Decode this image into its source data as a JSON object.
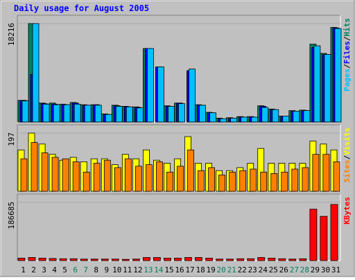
{
  "chart_data": {
    "type": "bar",
    "title": "Daily usage for August 2005",
    "categories": [
      "1",
      "2",
      "3",
      "4",
      "5",
      "6",
      "7",
      "8",
      "9",
      "10",
      "11",
      "12",
      "13",
      "14",
      "15",
      "16",
      "17",
      "18",
      "19",
      "20",
      "21",
      "22",
      "23",
      "24",
      "25",
      "26",
      "27",
      "28",
      "29",
      "30",
      "31"
    ],
    "weekend_days": [
      "6",
      "7",
      "13",
      "14",
      "20",
      "21",
      "27",
      "28"
    ],
    "colors": {
      "hits": "#00805c",
      "files": "#0000ff",
      "pages": "#00c0ff",
      "visits": "#ffff00",
      "sites": "#ff8000",
      "kbytes": "#ff0000",
      "background": "#c0c0c0",
      "panel": "#ffffff",
      "title": "#0000ff",
      "weekend_label": "#00805c",
      "weekday_label": "#000000"
    },
    "panels": [
      {
        "id": "hits-files-pages",
        "max_label": "18216",
        "ymax": 18216,
        "legend": [
          {
            "text": "Pages",
            "color": "#00c0ff"
          },
          {
            "text": "/",
            "color": "#000000"
          },
          {
            "text": "Files",
            "color": "#0000ff"
          },
          {
            "text": "/",
            "color": "#000000"
          },
          {
            "text": "Hits",
            "color": "#00805c"
          }
        ],
        "series": [
          {
            "name": "Hits",
            "color": "#00805c",
            "values": [
              4000,
              18216,
              3500,
              3500,
              3300,
              3600,
              3200,
              3200,
              1500,
              3100,
              2900,
              2800,
              13600,
              0,
              3000,
              3500,
              0,
              3200,
              1800,
              700,
              800,
              1000,
              1000,
              3000,
              2400,
              1100,
              2100,
              2200,
              14400,
              12700,
              17500
            ]
          },
          {
            "name": "Files",
            "color": "#0000ff",
            "values": [
              4000,
              8800,
              3400,
              3300,
              3200,
              3500,
              3100,
              3200,
              1400,
              3000,
              2800,
              2700,
              13600,
              10200,
              2900,
              3500,
              9500,
              3100,
              1700,
              600,
              700,
              900,
              900,
              2900,
              2300,
              1100,
              2000,
              2100,
              13800,
              12500,
              17400
            ]
          },
          {
            "name": "Pages",
            "color": "#00c0ff",
            "values": [
              3900,
              18216,
              3300,
              3200,
              3200,
              3300,
              3100,
              3100,
              1400,
              2900,
              2800,
              2600,
              13600,
              10200,
              2900,
              3400,
              9800,
              3100,
              1700,
              600,
              700,
              900,
              900,
              2700,
              2300,
              1100,
              2000,
              2100,
              14100,
              12500,
              17300
            ]
          }
        ]
      },
      {
        "id": "visits-sites",
        "max_label": "197",
        "ymax": 197,
        "legend": [
          {
            "text": "Sites",
            "color": "#ff8000"
          },
          {
            "text": "/",
            "color": "#000000"
          },
          {
            "text": "Visits",
            "color": "#ffff00"
          }
        ],
        "series": [
          {
            "name": "Visits",
            "color": "#ffff00",
            "values": [
              140,
              197,
              160,
              125,
              105,
              115,
              100,
              110,
              110,
              90,
              125,
              110,
              140,
              105,
              95,
              110,
              185,
              95,
              95,
              70,
              70,
              80,
              95,
              145,
              95,
              95,
              95,
              95,
              170,
              160,
              140
            ]
          },
          {
            "name": "Sites",
            "color": "#ff8000",
            "values": [
              110,
              165,
              130,
              115,
              110,
              100,
              65,
              95,
              105,
              80,
              110,
              85,
              90,
              100,
              65,
              85,
              140,
              70,
              80,
              55,
              65,
              70,
              75,
              65,
              60,
              65,
              75,
              80,
              125,
              125,
              100
            ]
          }
        ]
      },
      {
        "id": "kbytes",
        "max_label": "186685",
        "ymax": 186685,
        "legend": [
          {
            "text": "KBytes",
            "color": "#ff0000"
          }
        ],
        "series": [
          {
            "name": "KBytes",
            "color": "#ff0000",
            "values": [
              8000,
              10000,
              8000,
              7000,
              6000,
              6000,
              5000,
              5000,
              5000,
              5000,
              4000,
              5000,
              10000,
              10000,
              8000,
              8000,
              10000,
              10000,
              8000,
              5000,
              5000,
              6000,
              6000,
              10000,
              8000,
              6000,
              5000,
              6000,
              165000,
              142000,
              180000
            ]
          }
        ]
      }
    ]
  }
}
